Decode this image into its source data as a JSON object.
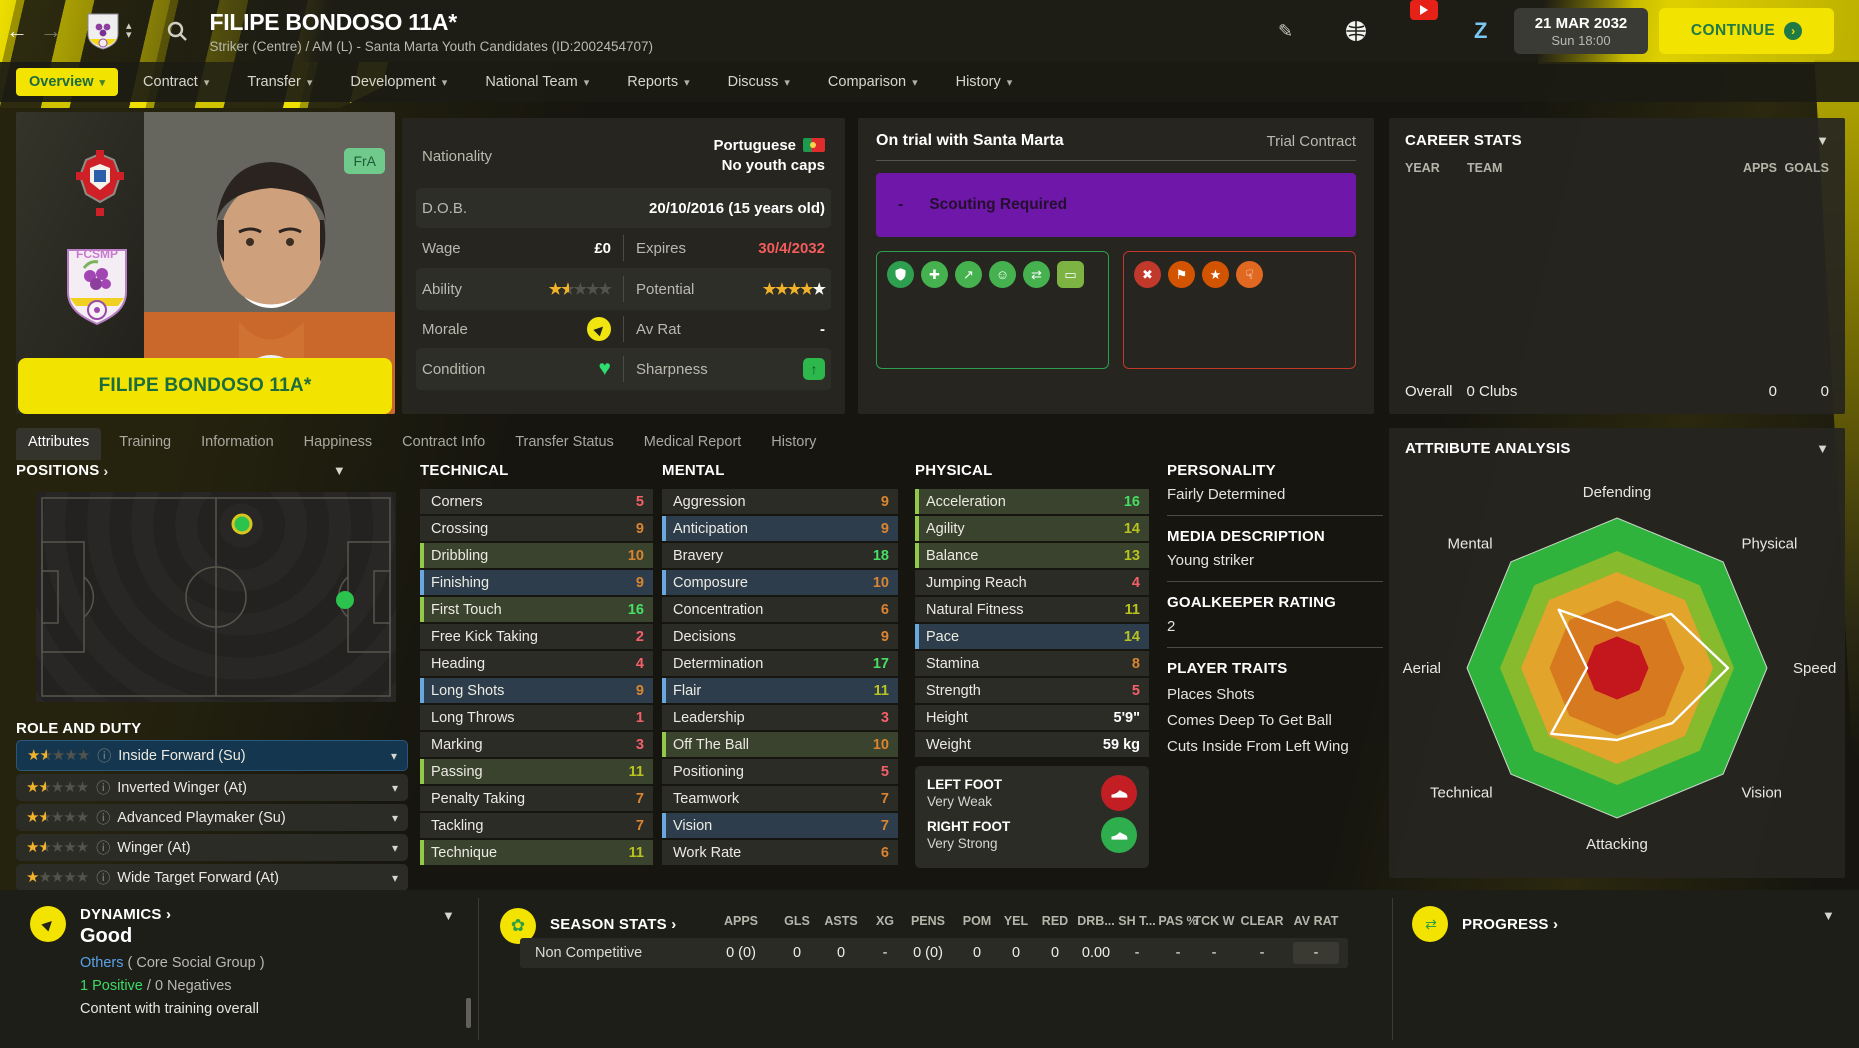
{
  "header": {
    "title": "FILIPE BONDOSO 11A*",
    "subtitle": "Striker (Centre) / AM (L) - Santa Marta Youth Candidates (ID:2002454707)",
    "date": "21 MAR 2032",
    "day_time": "Sun 18:00",
    "continue_label": "CONTINUE"
  },
  "nav_tabs": [
    {
      "label": "Overview",
      "active": true
    },
    {
      "label": "Contract"
    },
    {
      "label": "Transfer"
    },
    {
      "label": "Development"
    },
    {
      "label": "National Team"
    },
    {
      "label": "Reports"
    },
    {
      "label": "Discuss"
    },
    {
      "label": "Comparison"
    },
    {
      "label": "History"
    }
  ],
  "sub_tabs": [
    {
      "label": "Attributes",
      "active": true
    },
    {
      "label": "Training"
    },
    {
      "label": "Information"
    },
    {
      "label": "Happiness"
    },
    {
      "label": "Contract Info"
    },
    {
      "label": "Transfer Status"
    },
    {
      "label": "Medical Report"
    },
    {
      "label": "History"
    }
  ],
  "player_card": {
    "name": "FILIPE BONDOSO 11A*",
    "flag_badge": "FrA"
  },
  "info": {
    "nationality_label": "Nationality",
    "nationality_value": "Portuguese",
    "nationality_sub": "No youth caps",
    "dob_label": "D.O.B.",
    "dob_value": "20/10/2016 (15 years old)",
    "wage_label": "Wage",
    "wage_value": "£0",
    "expires_label": "Expires",
    "expires_value": "30/4/2032",
    "ability_label": "Ability",
    "ability_stars": 1.5,
    "potential_label": "Potential",
    "potential_stars": 4,
    "potential_white_star": true,
    "morale_label": "Morale",
    "avrat_label": "Av Rat",
    "avrat_value": "-",
    "condition_label": "Condition",
    "sharpness_label": "Sharpness"
  },
  "trial": {
    "title": "On trial with Santa Marta",
    "contract_type": "Trial Contract",
    "banner_dash": "-",
    "banner_text": "Scouting Required",
    "green_icons": [
      {
        "name": "shield-icon",
        "glyph": "svg-shield",
        "color": "#2e9e4f"
      },
      {
        "name": "medical-icon",
        "glyph": "✚",
        "color": "#46b14f"
      },
      {
        "name": "growth-icon",
        "glyph": "↗",
        "color": "#46b14f"
      },
      {
        "name": "mentality-icon",
        "glyph": "☺",
        "color": "#46b14f"
      },
      {
        "name": "transfer-icon",
        "glyph": "⇄",
        "color": "#46b14f"
      },
      {
        "name": "pitch-icon",
        "glyph": "▭",
        "color": "#7cb342"
      }
    ],
    "red_icons": [
      {
        "name": "injury-icon",
        "glyph": "✖",
        "color": "#c0392b"
      },
      {
        "name": "discipline-icon",
        "glyph": "⚑",
        "color": "#d35400"
      },
      {
        "name": "star-icon",
        "glyph": "★",
        "color": "#d35400"
      },
      {
        "name": "foot-icon",
        "glyph": "☟",
        "color": "#e06820"
      }
    ]
  },
  "career_stats": {
    "title": "CAREER STATS",
    "col_year": "YEAR",
    "col_team": "TEAM",
    "col_apps": "APPS",
    "col_goals": "GOALS",
    "overall_label": "Overall",
    "overall_clubs": "0 Clubs",
    "overall_apps": "0",
    "overall_goals": "0"
  },
  "positions": {
    "title": "POSITIONS"
  },
  "roles": {
    "title": "ROLE AND DUTY",
    "items": [
      {
        "label": "Inside Forward (Su)",
        "stars": 1.5,
        "selected": true
      },
      {
        "label": "Inverted Winger (At)",
        "stars": 1.5
      },
      {
        "label": "Advanced Playmaker (Su)",
        "stars": 1.5
      },
      {
        "label": "Winger (At)",
        "stars": 1.5
      },
      {
        "label": "Wide Target Forward (At)",
        "stars": 1
      }
    ]
  },
  "attributes": {
    "columns": [
      {
        "title": "TECHNICAL",
        "rows": [
          [
            "Corners",
            5,
            ""
          ],
          [
            "Crossing",
            9,
            ""
          ],
          [
            "Dribbling",
            10,
            "green"
          ],
          [
            "Finishing",
            9,
            "blue"
          ],
          [
            "First Touch",
            16,
            "green"
          ],
          [
            "Free Kick Taking",
            2,
            ""
          ],
          [
            "Heading",
            4,
            ""
          ],
          [
            "Long Shots",
            9,
            "blue"
          ],
          [
            "Long Throws",
            1,
            ""
          ],
          [
            "Marking",
            3,
            ""
          ],
          [
            "Passing",
            11,
            "green"
          ],
          [
            "Penalty Taking",
            7,
            ""
          ],
          [
            "Tackling",
            7,
            ""
          ],
          [
            "Technique",
            11,
            "green"
          ]
        ]
      },
      {
        "title": "MENTAL",
        "rows": [
          [
            "Aggression",
            9,
            ""
          ],
          [
            "Anticipation",
            9,
            "blue"
          ],
          [
            "Bravery",
            18,
            ""
          ],
          [
            "Composure",
            10,
            "blue"
          ],
          [
            "Concentration",
            6,
            ""
          ],
          [
            "Decisions",
            9,
            ""
          ],
          [
            "Determination",
            17,
            ""
          ],
          [
            "Flair",
            11,
            "blue"
          ],
          [
            "Leadership",
            3,
            ""
          ],
          [
            "Off The Ball",
            10,
            "green"
          ],
          [
            "Positioning",
            5,
            ""
          ],
          [
            "Teamwork",
            7,
            ""
          ],
          [
            "Vision",
            7,
            "blue"
          ],
          [
            "Work Rate",
            6,
            ""
          ]
        ]
      },
      {
        "title": "PHYSICAL",
        "rows": [
          [
            "Acceleration",
            16,
            "green"
          ],
          [
            "Agility",
            14,
            "green"
          ],
          [
            "Balance",
            13,
            "green"
          ],
          [
            "Jumping Reach",
            4,
            ""
          ],
          [
            "Natural Fitness",
            11,
            ""
          ],
          [
            "Pace",
            14,
            "blue"
          ],
          [
            "Stamina",
            8,
            ""
          ],
          [
            "Strength",
            5,
            ""
          ]
        ],
        "extra_rows": [
          [
            "Height",
            "5'9\""
          ],
          [
            "Weight",
            "59 kg"
          ]
        ]
      }
    ],
    "feet": {
      "left_label": "LEFT FOOT",
      "left_value": "Very Weak",
      "right_label": "RIGHT FOOT",
      "right_value": "Very Strong"
    }
  },
  "profile": {
    "personality_title": "PERSONALITY",
    "personality": "Fairly Determined",
    "media_title": "MEDIA DESCRIPTION",
    "media": "Young striker",
    "gk_title": "GOALKEEPER RATING",
    "gk": "2",
    "traits_title": "PLAYER TRAITS",
    "traits": [
      "Places Shots",
      "Comes Deep To Get Ball",
      "Cuts Inside From Left Wing"
    ]
  },
  "chart_data": {
    "type": "radar",
    "title": "ATTRIBUTE ANALYSIS",
    "axes": [
      "Defending",
      "Physical",
      "Speed",
      "Vision",
      "Attacking",
      "Technical",
      "Aerial",
      "Mental"
    ],
    "values_0_1": [
      0.25,
      0.51,
      0.74,
      0.52,
      0.48,
      0.62,
      0.2,
      0.55
    ],
    "band_fractions": [
      1,
      0.78,
      0.64,
      0.45,
      0.21
    ],
    "band_colors": [
      "#2fb33c",
      "#87ba2d",
      "#e2a42a",
      "#d7791f",
      "#c4161d"
    ],
    "outline_color": "#ffffff",
    "legend_position": "around-octagon",
    "grid": false
  },
  "dynamics": {
    "title": "DYNAMICS",
    "value": "Good",
    "group_link": "Others",
    "group_suffix": " ( Core Social Group )",
    "positives": "1 Positive",
    "separator": " / ",
    "negatives": "0 Negatives",
    "note": "Content with training overall"
  },
  "season_stats": {
    "title": "SEASON STATS",
    "row_label": "Non Competitive",
    "columns": [
      "APPS",
      "GLS",
      "ASTS",
      "XG",
      "PENS",
      "POM",
      "YEL",
      "RED",
      "DRB...",
      "SH T...",
      "PAS %",
      "TCK W",
      "CLEAR",
      "AV RAT"
    ],
    "values": [
      "0 (0)",
      "0",
      "0",
      "-",
      "0 (0)",
      "0",
      "0",
      "0",
      "0.00",
      "-",
      "-",
      "-",
      "-",
      "-"
    ]
  },
  "progress": {
    "title": "PROGRESS"
  }
}
